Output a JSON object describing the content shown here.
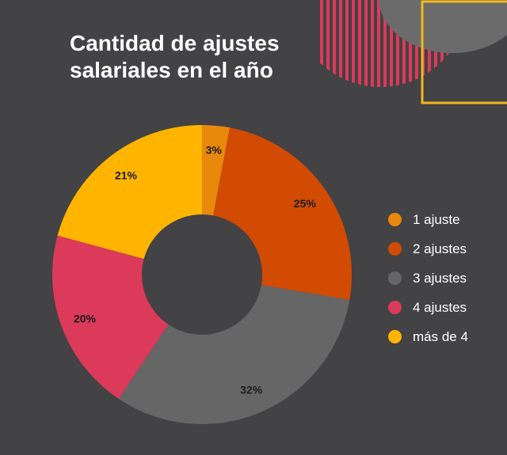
{
  "chart_data": {
    "type": "pie",
    "variant": "donut",
    "title_lines": [
      "Cantidad de ajustes",
      "salariales en el año"
    ],
    "categories": [
      "1 ajuste",
      "2 ajustes",
      "3 ajustes",
      "4 ajustes",
      "más de 4"
    ],
    "values": [
      3,
      25,
      32,
      20,
      21
    ],
    "value_labels": [
      "3%",
      "25%",
      "32%",
      "20%",
      "21%"
    ],
    "colors": [
      "#E8890C",
      "#D14B03",
      "#666666",
      "#DB3A5A",
      "#FFB500"
    ],
    "legend_position": "right"
  },
  "decor": {
    "background": "#434244",
    "stripe_color": "#DB3A5A",
    "gray_shape": "#6B6B6B",
    "frame_color": "#F2B81A"
  }
}
